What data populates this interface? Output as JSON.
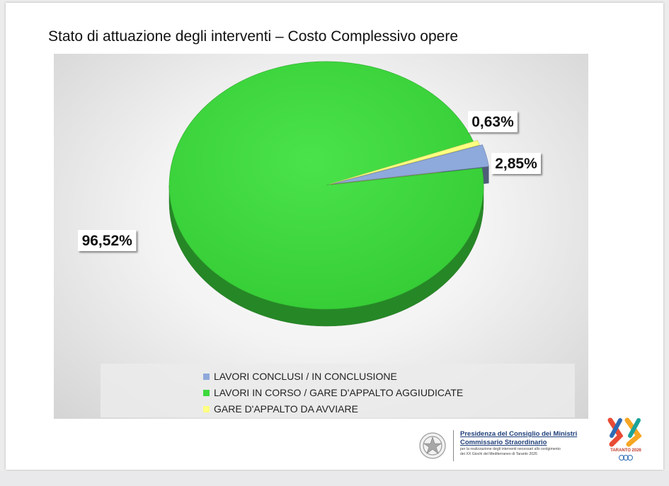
{
  "header": {
    "title": "Stato di attuazione degli interventi – Costo Complessivo opere"
  },
  "chart_data": {
    "type": "pie",
    "title": "Stato di attuazione degli interventi – Costo Complessivo opere",
    "slices": [
      {
        "label": "LAVORI CONCLUSI / IN CONCLUSIONE",
        "value": 2.85,
        "display": "2,85%",
        "color": "#8ea9db"
      },
      {
        "label": "LAVORI IN CORSO / GARE D'APPALTO AGGIUDICATE",
        "value": 96.52,
        "display": "96,52%",
        "color": "#3dd93d"
      },
      {
        "label": "GARE D'APPALTO DA AVVIARE",
        "value": 0.63,
        "display": "0,63%",
        "color": "#ffff80"
      }
    ],
    "legend_position": "bottom",
    "style": "3d"
  },
  "legend": {
    "items": [
      {
        "label": "LAVORI CONCLUSI / IN CONCLUSIONE",
        "color": "#8ea9db"
      },
      {
        "label": "LAVORI IN CORSO / GARE D'APPALTO AGGIUDICATE",
        "color": "#3dd93d"
      },
      {
        "label": "GARE D'APPALTO DA AVVIARE",
        "color": "#ffff80"
      }
    ]
  },
  "footer": {
    "line1": "Presidenza del Consiglio dei Ministri",
    "line2": "Commissario Straordinario",
    "line3": "per la realizzazione degli interventi necessari allo svolgimento",
    "line4": "dei XX Giochi del Mediterraneo di Taranto 2026",
    "logo_text": "TARANTO 2026",
    "logo_mark": "XX"
  }
}
